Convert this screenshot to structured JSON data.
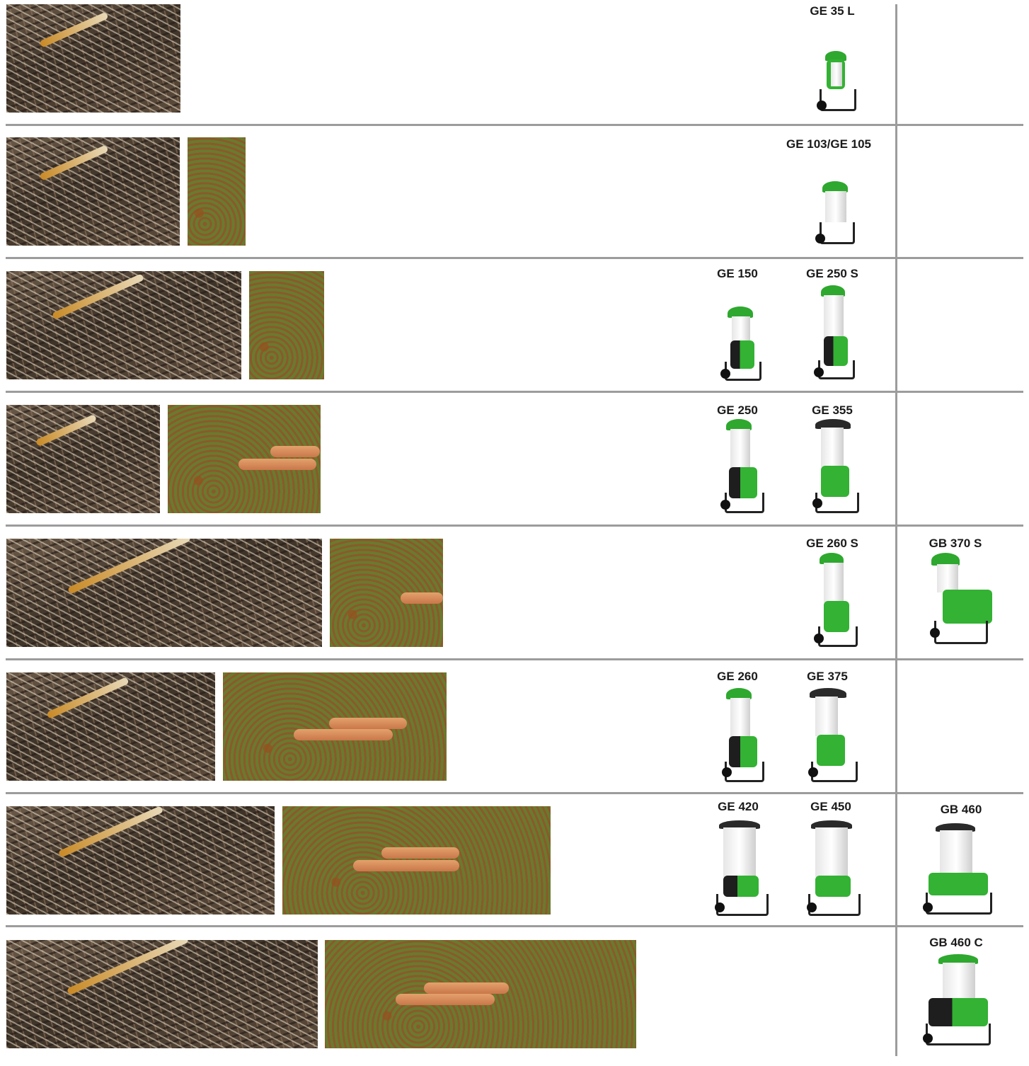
{
  "rows": [
    {
      "models": [
        "GE 35 L"
      ],
      "side_model": ""
    },
    {
      "models": [
        "GE 103/GE 105"
      ],
      "side_model": ""
    },
    {
      "models": [
        "GE 150",
        "GE 250 S"
      ],
      "side_model": ""
    },
    {
      "models": [
        "GE 250",
        "GE 355"
      ],
      "side_model": ""
    },
    {
      "models": [
        "GE 260 S"
      ],
      "side_model": "GB 370 S"
    },
    {
      "models": [
        "GE 260",
        "GE 375"
      ],
      "side_model": ""
    },
    {
      "models": [
        "GE 420",
        "GE 450"
      ],
      "side_model": "GB 460"
    },
    {
      "models": [],
      "side_model": "GB 460 C"
    }
  ],
  "colors": {
    "accent_green": "#33b233",
    "separator_gray": "#9c9c9c"
  }
}
